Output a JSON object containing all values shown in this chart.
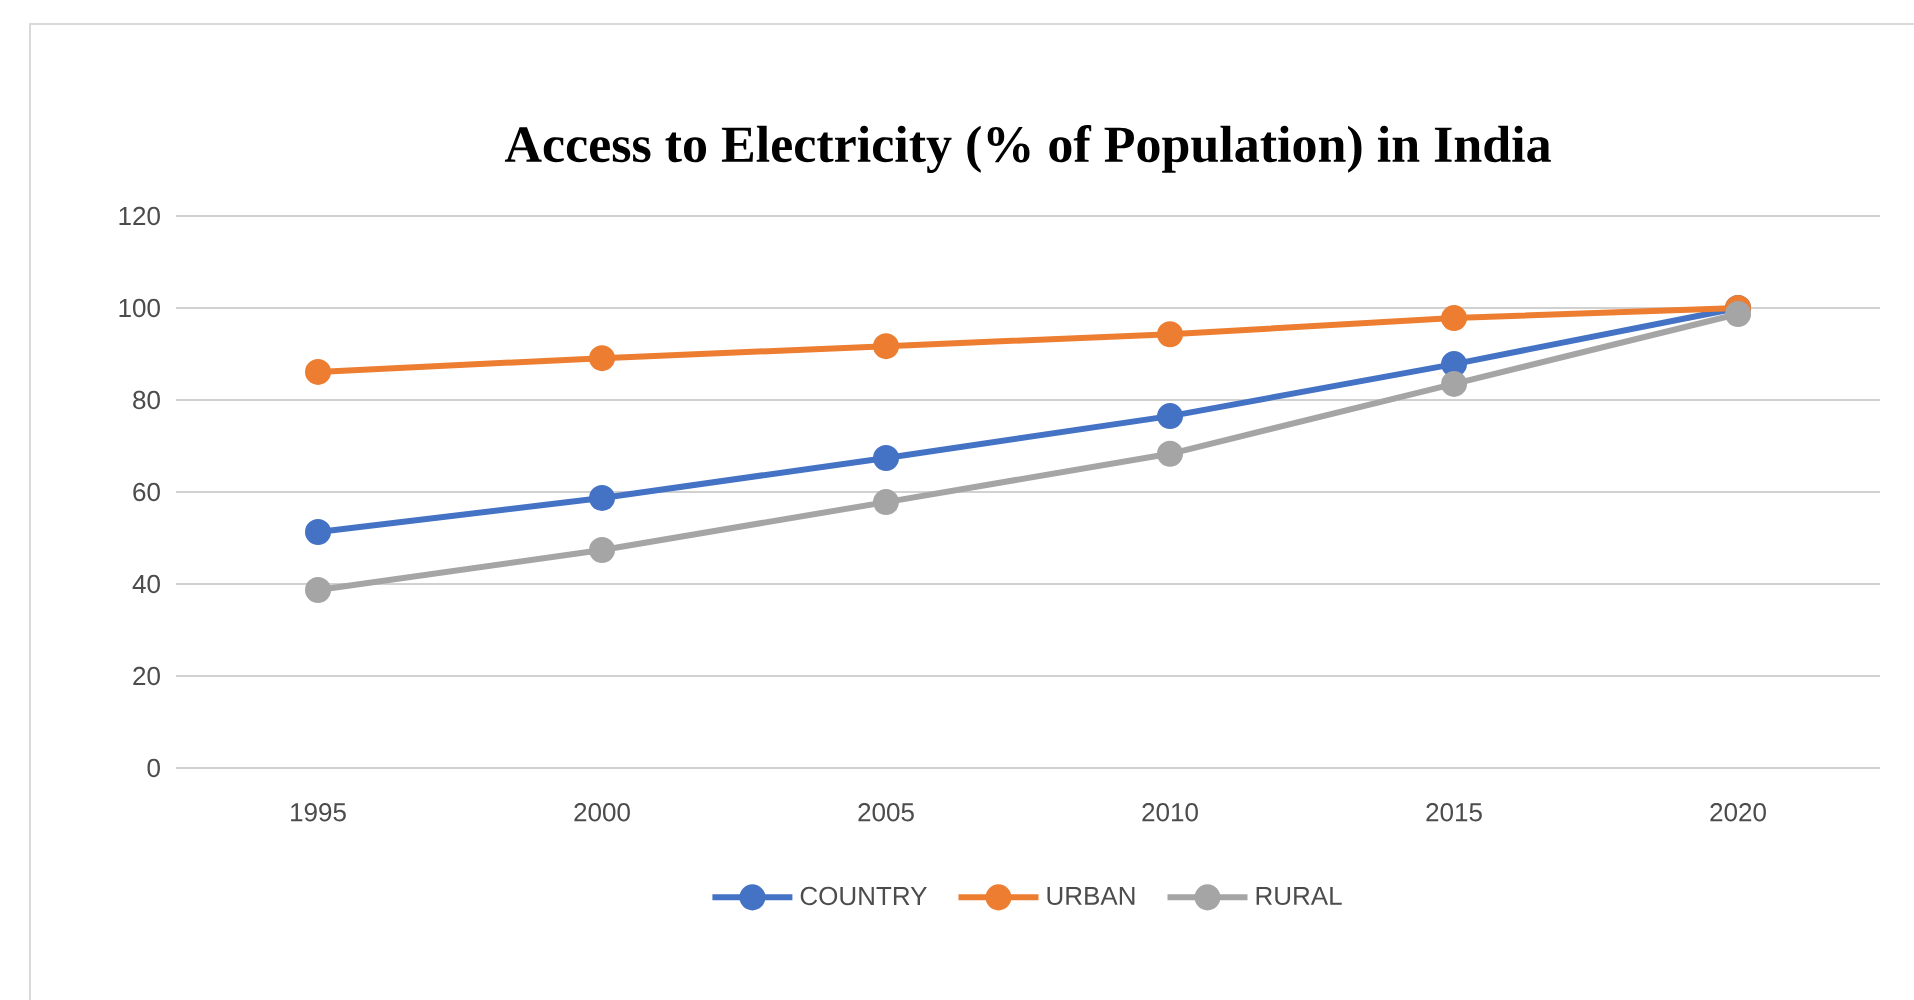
{
  "chart_data": {
    "type": "line",
    "title": "Access to Electricity (% of Population) in India",
    "categories": [
      "1995",
      "2000",
      "2005",
      "2010",
      "2015",
      "2020"
    ],
    "series": [
      {
        "name": "COUNTRY",
        "color": "#4472c4",
        "values": [
          51.3,
          58.7,
          67.4,
          76.5,
          87.8,
          100
        ]
      },
      {
        "name": "URBAN",
        "color": "#ed7d31",
        "values": [
          86.1,
          89.1,
          91.7,
          94.3,
          97.8,
          100
        ]
      },
      {
        "name": "RURAL",
        "color": "#a5a5a5",
        "values": [
          38.7,
          47.4,
          57.8,
          68.3,
          83.5,
          98.7
        ]
      }
    ],
    "ylim": [
      0,
      120
    ],
    "yticks": [
      0,
      20,
      40,
      60,
      80,
      100,
      120
    ],
    "grid": "y",
    "legend": "bottom",
    "marker": "circle",
    "line_style": "solid"
  }
}
